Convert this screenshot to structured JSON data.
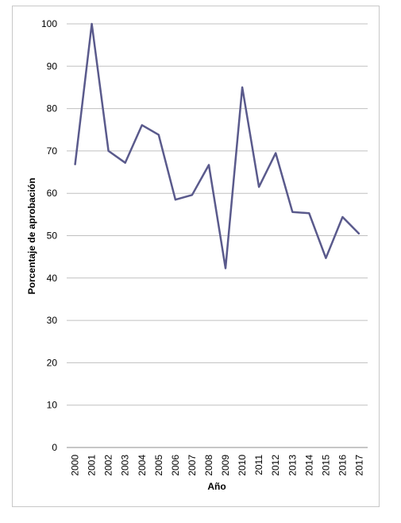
{
  "chart_data": {
    "type": "line",
    "title": "",
    "xlabel": "Año",
    "ylabel": "Porcentaje de aprobación",
    "ylim": [
      0,
      100
    ],
    "yticks": [
      0,
      10,
      20,
      30,
      40,
      50,
      60,
      70,
      80,
      90,
      100
    ],
    "grid": true,
    "categories": [
      "2000",
      "2001",
      "2002",
      "2003",
      "2004",
      "2005",
      "2006",
      "2007",
      "2008",
      "2009",
      "2010",
      "2011",
      "2012",
      "2013",
      "2014",
      "2015",
      "2016",
      "2017"
    ],
    "series": [
      {
        "color": "#5a5a8c",
        "values": [
          66.7,
          100,
          70,
          67.2,
          76.1,
          73.8,
          58.5,
          59.6,
          66.7,
          42.3,
          85,
          61.5,
          69.5,
          55.6,
          55.3,
          44.7,
          54.4,
          50.4
        ]
      }
    ]
  }
}
